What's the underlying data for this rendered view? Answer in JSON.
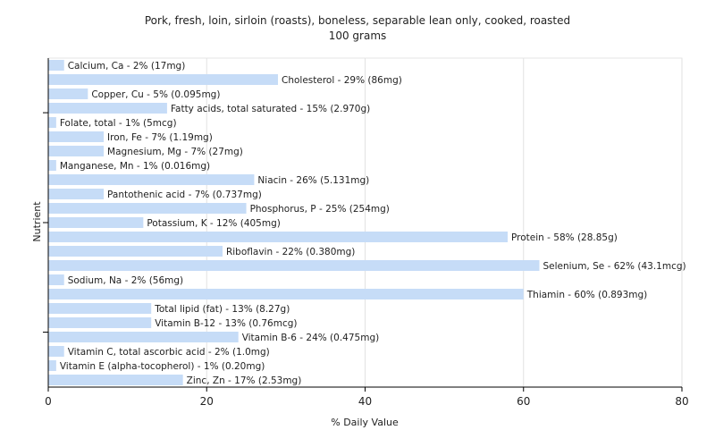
{
  "chart_data": {
    "type": "bar",
    "orientation": "horizontal",
    "title": "Pork, fresh, loin, sirloin (roasts), boneless, separable lean only, cooked, roasted",
    "subtitle": "100 grams",
    "xlabel": "% Daily Value",
    "ylabel": "Nutrient",
    "xlim": [
      0,
      80
    ],
    "xticks": [
      0,
      20,
      40,
      60,
      80
    ],
    "grid": true,
    "bar_color": "#c6dcf7",
    "categories": [
      "Calcium, Ca",
      "Cholesterol",
      "Copper, Cu",
      "Fatty acids, total saturated",
      "Folate, total",
      "Iron, Fe",
      "Magnesium, Mg",
      "Manganese, Mn",
      "Niacin",
      "Pantothenic acid",
      "Phosphorus, P",
      "Potassium, K",
      "Protein",
      "Riboflavin",
      "Selenium, Se",
      "Sodium, Na",
      "Thiamin",
      "Total lipid (fat)",
      "Vitamin B-12",
      "Vitamin B-6",
      "Vitamin C, total ascorbic acid",
      "Vitamin E (alpha-tocopherol)",
      "Zinc, Zn"
    ],
    "values": [
      2,
      29,
      5,
      15,
      1,
      7,
      7,
      1,
      26,
      7,
      25,
      12,
      58,
      22,
      62,
      2,
      60,
      13,
      13,
      24,
      2,
      1,
      17
    ],
    "labels": [
      "Calcium, Ca - 2% (17mg)",
      "Cholesterol - 29% (86mg)",
      "Copper, Cu - 5% (0.095mg)",
      "Fatty acids, total saturated - 15% (2.970g)",
      "Folate, total - 1% (5mcg)",
      "Iron, Fe - 7% (1.19mg)",
      "Magnesium, Mg - 7% (27mg)",
      "Manganese, Mn - 1% (0.016mg)",
      "Niacin - 26% (5.131mg)",
      "Pantothenic acid - 7% (0.737mg)",
      "Phosphorus, P - 25% (254mg)",
      "Potassium, K - 12% (405mg)",
      "Protein - 58% (28.85g)",
      "Riboflavin - 22% (0.380mg)",
      "Selenium, Se - 62% (43.1mcg)",
      "Sodium, Na - 2% (56mg)",
      "Thiamin - 60% (0.893mg)",
      "Total lipid (fat) - 13% (8.27g)",
      "Vitamin B-12 - 13% (0.76mcg)",
      "Vitamin B-6 - 24% (0.475mg)",
      "Vitamin C, total ascorbic acid - 2% (1.0mg)",
      "Vitamin E (alpha-tocopherol) - 1% (0.20mg)",
      "Zinc, Zn - 17% (2.53mg)"
    ]
  }
}
